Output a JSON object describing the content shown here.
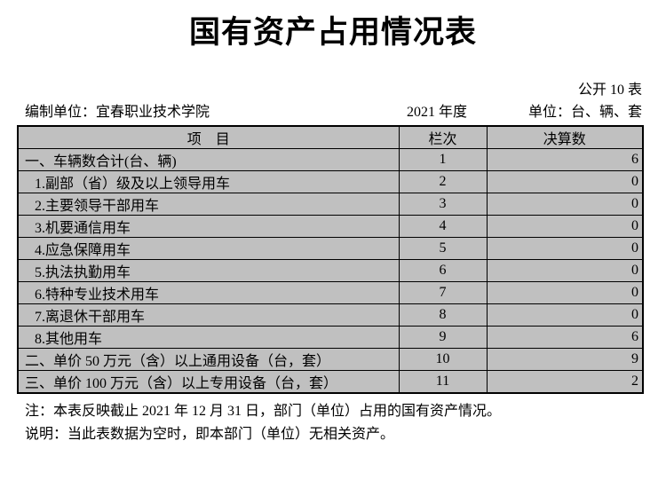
{
  "document": {
    "title": "国有资产占用情况表",
    "sheet_label": "公开 10 表",
    "prepared_by": "编制单位：宜春职业技术学院",
    "fiscal_year": "2021 年度",
    "unit_note": "单位：台、辆、套"
  },
  "table": {
    "headers": {
      "item": "项　目",
      "column_no": "栏次",
      "final_value": "决算数"
    },
    "rows": [
      {
        "item": "一、车辆数合计(台、辆)",
        "column_no": "1",
        "value": "6",
        "level": "section"
      },
      {
        "item": "1.副部（省）级及以上领导用车",
        "column_no": "2",
        "value": "0",
        "level": "sub"
      },
      {
        "item": "2.主要领导干部用车",
        "column_no": "3",
        "value": "0",
        "level": "sub"
      },
      {
        "item": "3.机要通信用车",
        "column_no": "4",
        "value": "0",
        "level": "sub"
      },
      {
        "item": "4.应急保障用车",
        "column_no": "5",
        "value": "0",
        "level": "sub"
      },
      {
        "item": "5.执法执勤用车",
        "column_no": "6",
        "value": "0",
        "level": "sub"
      },
      {
        "item": "6.特种专业技术用车",
        "column_no": "7",
        "value": "0",
        "level": "sub"
      },
      {
        "item": "7.离退休干部用车",
        "column_no": "8",
        "value": "0",
        "level": "sub"
      },
      {
        "item": "8.其他用车",
        "column_no": "9",
        "value": "6",
        "level": "sub"
      },
      {
        "item": "二、单价 50 万元（含）以上通用设备（台，套）",
        "column_no": "10",
        "value": "9",
        "level": "section"
      },
      {
        "item": "三、单价 100 万元（含）以上专用设备（台，套）",
        "column_no": "11",
        "value": "2",
        "level": "section"
      }
    ]
  },
  "notes": [
    "注：本表反映截止 2021 年 12 月 31 日，部门（单位）占用的国有资产情况。",
    "说明：当此表数据为空时，即本部门（单位）无相关资产。"
  ],
  "colors": {
    "value_highlight": "#00ff00",
    "cell_background": "#c0c0c0",
    "border": "#000000"
  }
}
